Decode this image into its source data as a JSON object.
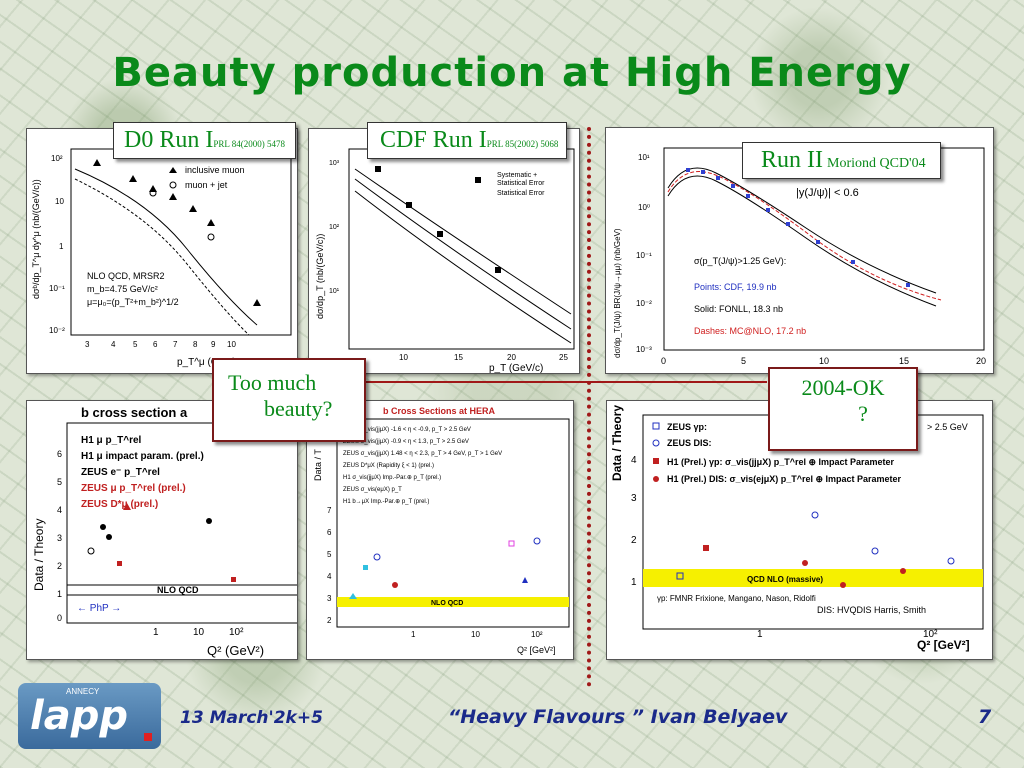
{
  "title": "Beauty production at High Energy",
  "labels": {
    "d0": {
      "name": "D0 Run I",
      "ref": "PRL 84(2000) 5478"
    },
    "cdf": {
      "name": "CDF Run I",
      "ref": "PRL 85(2002) 5068"
    },
    "run2": {
      "name": "Run II",
      "ref": "Moriond QCD'04"
    },
    "too_much": [
      "Too much",
      "beauty?"
    ],
    "ok": [
      "2004-OK",
      "?"
    ]
  },
  "footer": {
    "date": "13 March'2k+5",
    "talk": "“Heavy Flavours ” Ivan  Belyaev",
    "page": "7",
    "logo_top": "ANNECY",
    "logo_main": "lapp"
  },
  "d0_plot": {
    "yaxis": "dσᵇ/dp_T^μ dy^μ (nb/(GeV/c))",
    "xaxis": "p_T^μ  (GeV/c",
    "legend": [
      "inclusive muon",
      "muon + jet"
    ],
    "theory": [
      "NLO QCD, MRSR2",
      "m_b=4.75 GeV/c²",
      "μ=μ₀=(p_T²+m_b²)^1/2"
    ],
    "xticks": [
      "3",
      "4",
      "5",
      "6",
      "7",
      "8",
      "9",
      "10"
    ],
    "yticks": [
      "10²",
      "10",
      "1",
      "10⁻¹",
      "10⁻²"
    ]
  },
  "cdf_plot": {
    "yaxis": "dσ/dp_T (nb/(GeV/c))",
    "xaxis": "p_T (GeV/c)",
    "legend": [
      "Systematic +",
      "Statistical Error",
      "Statistical Error"
    ],
    "xticks": [
      "10",
      "15",
      "20",
      "25"
    ],
    "yticks": [
      "10³",
      "10²",
      "10¹"
    ]
  },
  "run2_plot": {
    "yaxis": "dσ/dp_T(J/ψ) BR(J/ψ→μμ) (nb/GeV)",
    "rapidity": "|y(J/ψ)|  <  0.6",
    "sigma": "σ(p_T(J/ψ)>1.25 GeV):",
    "points": "Points: CDF, 19.9 nb",
    "solid": "Solid: FONLL, 18.3 nb",
    "dashes": "Dashes: MC@NLO, 17.2 nb",
    "xticks": [
      "0",
      "5",
      "10",
      "15",
      "20"
    ],
    "yticks": [
      "10¹",
      "10⁰",
      "10⁻¹",
      "10⁻²",
      "10⁻³"
    ]
  },
  "hera1": {
    "title": "b cross section a",
    "yaxis": "Data / Theory",
    "xaxis": "Q² (GeV²)",
    "legend": [
      "H1 μ p_T^rel",
      "H1 μ impact param. (prel.)",
      "ZEUS e⁻ p_T^rel",
      "ZEUS μ p_T^rel (prel.)",
      "ZEUS D*μ (prel.)"
    ],
    "band": "NLO QCD",
    "php": "← PhP →",
    "yticks": [
      "6",
      "5",
      "4",
      "3",
      "2",
      "1",
      "0"
    ],
    "xticks": [
      "1",
      "10",
      "10²"
    ]
  },
  "hera2": {
    "title": "b Cross Sections at HERA",
    "yaxis": "Data / T",
    "xaxis": "Q² [GeV²]",
    "legend": [
      "ZEUS  σ_vis(jjμX)  -1.6 < η < -0.9, p_T > 2.5 GeV",
      "ZEUS  σ_vis(jjμX)  -0.9 < η < 1.3, p_T > 2.5 GeV",
      "ZEUS  σ_vis(jjμX)  1.48 < η < 2.3, p_T > 4 GeV, p_T > 1 GeV",
      "ZEUS  D*μX (Rapidity ξ < 1) (prel.)",
      "H1     σ_vis(jjμX)  Imp.-Par.⊕ p_T (prel.)",
      "ZEUS  σ_vis(eμX)  p_T",
      "H1     b→μX  Imp.-Par.⊕ p_T (prel.)"
    ],
    "band": "NLO QCD",
    "yticks": [
      "7",
      "6",
      "5",
      "4",
      "3",
      "2",
      "1"
    ],
    "xticks": [
      "1",
      "10",
      "10²"
    ]
  },
  "hera3": {
    "yaxis": "Data / Theory",
    "xaxis": "Q² [GeV²]",
    "legend": [
      "ZEUS    γp:",
      "ZEUS    DIS:",
      "H1 (Prel.) γp:  σ_vis(jjμX)  p_T^rel ⊕ Impact Parameter",
      "H1 (Prel.) DIS:  σ_vis(ejμX)  p_T^rel ⊕ Impact Parameter"
    ],
    "gev": "> 2.5 GeV",
    "band": "QCD NLO (massive)",
    "gp_ref": "γp: FMNR Frixione, Mangano, Nason, Ridolfi",
    "dis_ref": "DIS: HVQDIS Harris, Smith",
    "yticks": [
      "4",
      "3",
      "2",
      "1"
    ],
    "xticks": [
      "1",
      "10²"
    ]
  }
}
